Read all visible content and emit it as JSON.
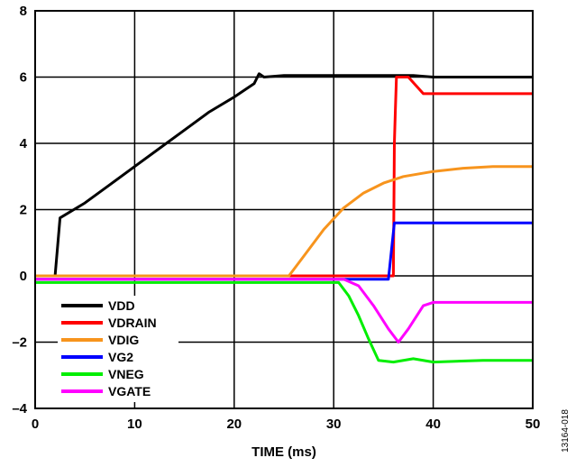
{
  "chart_data": {
    "type": "line",
    "title": "",
    "xlabel": "TIME (ms)",
    "ylabel": "",
    "xlim": [
      0,
      50
    ],
    "ylim": [
      -4,
      8
    ],
    "xticks": [
      "0",
      "10",
      "20",
      "30",
      "40",
      "50"
    ],
    "yticks": [
      "–4",
      "–2",
      "0",
      "2",
      "4",
      "6",
      "8"
    ],
    "grid": true,
    "legend_position": "bottom-left",
    "figure_id": "13164-018",
    "series": [
      {
        "name": "VDD",
        "color": "#000000",
        "points": [
          [
            0,
            0
          ],
          [
            2,
            0
          ],
          [
            2.5,
            1.75
          ],
          [
            5,
            2.2
          ],
          [
            7.5,
            2.75
          ],
          [
            10,
            3.3
          ],
          [
            12.5,
            3.85
          ],
          [
            15,
            4.4
          ],
          [
            17.5,
            4.95
          ],
          [
            20,
            5.4
          ],
          [
            22,
            5.8
          ],
          [
            22.5,
            6.1
          ],
          [
            23,
            6
          ],
          [
            25,
            6.05
          ],
          [
            30,
            6.05
          ],
          [
            35,
            6.05
          ],
          [
            38,
            6.05
          ],
          [
            40,
            6
          ],
          [
            45,
            6
          ],
          [
            50,
            6
          ]
        ]
      },
      {
        "name": "VDRAIN",
        "color": "#ff0000",
        "points": [
          [
            0,
            0
          ],
          [
            36,
            0
          ],
          [
            36.1,
            4
          ],
          [
            36.2,
            5
          ],
          [
            36.3,
            6
          ],
          [
            37.5,
            6
          ],
          [
            39,
            5.5
          ],
          [
            45,
            5.5
          ],
          [
            50,
            5.5
          ]
        ]
      },
      {
        "name": "VDIG",
        "color": "#f7941d",
        "points": [
          [
            0,
            0
          ],
          [
            25.5,
            0
          ],
          [
            27,
            0.6
          ],
          [
            29,
            1.4
          ],
          [
            31,
            2.05
          ],
          [
            33,
            2.5
          ],
          [
            35,
            2.8
          ],
          [
            37,
            3
          ],
          [
            40,
            3.15
          ],
          [
            43,
            3.25
          ],
          [
            46,
            3.3
          ],
          [
            50,
            3.3
          ]
        ]
      },
      {
        "name": "VG2",
        "color": "#0000ff",
        "points": [
          [
            0,
            -0.1
          ],
          [
            35.5,
            -0.1
          ],
          [
            36.1,
            1.6
          ],
          [
            40,
            1.6
          ],
          [
            45,
            1.6
          ],
          [
            50,
            1.6
          ]
        ]
      },
      {
        "name": "VNEG",
        "color": "#00ee00",
        "points": [
          [
            0,
            -0.2
          ],
          [
            30.5,
            -0.2
          ],
          [
            31.5,
            -0.6
          ],
          [
            32.5,
            -1.2
          ],
          [
            33.5,
            -1.9
          ],
          [
            34.5,
            -2.55
          ],
          [
            36,
            -2.6
          ],
          [
            38,
            -2.5
          ],
          [
            40,
            -2.6
          ],
          [
            45,
            -2.55
          ],
          [
            50,
            -2.55
          ]
        ]
      },
      {
        "name": "VGATE",
        "color": "#ff00ff",
        "points": [
          [
            0,
            -0.1
          ],
          [
            31,
            -0.1
          ],
          [
            32.5,
            -0.3
          ],
          [
            34,
            -0.9
          ],
          [
            35.5,
            -1.6
          ],
          [
            36.5,
            -2
          ],
          [
            37.5,
            -1.6
          ],
          [
            39,
            -0.9
          ],
          [
            40,
            -0.8
          ],
          [
            45,
            -0.8
          ],
          [
            50,
            -0.8
          ]
        ]
      }
    ]
  }
}
